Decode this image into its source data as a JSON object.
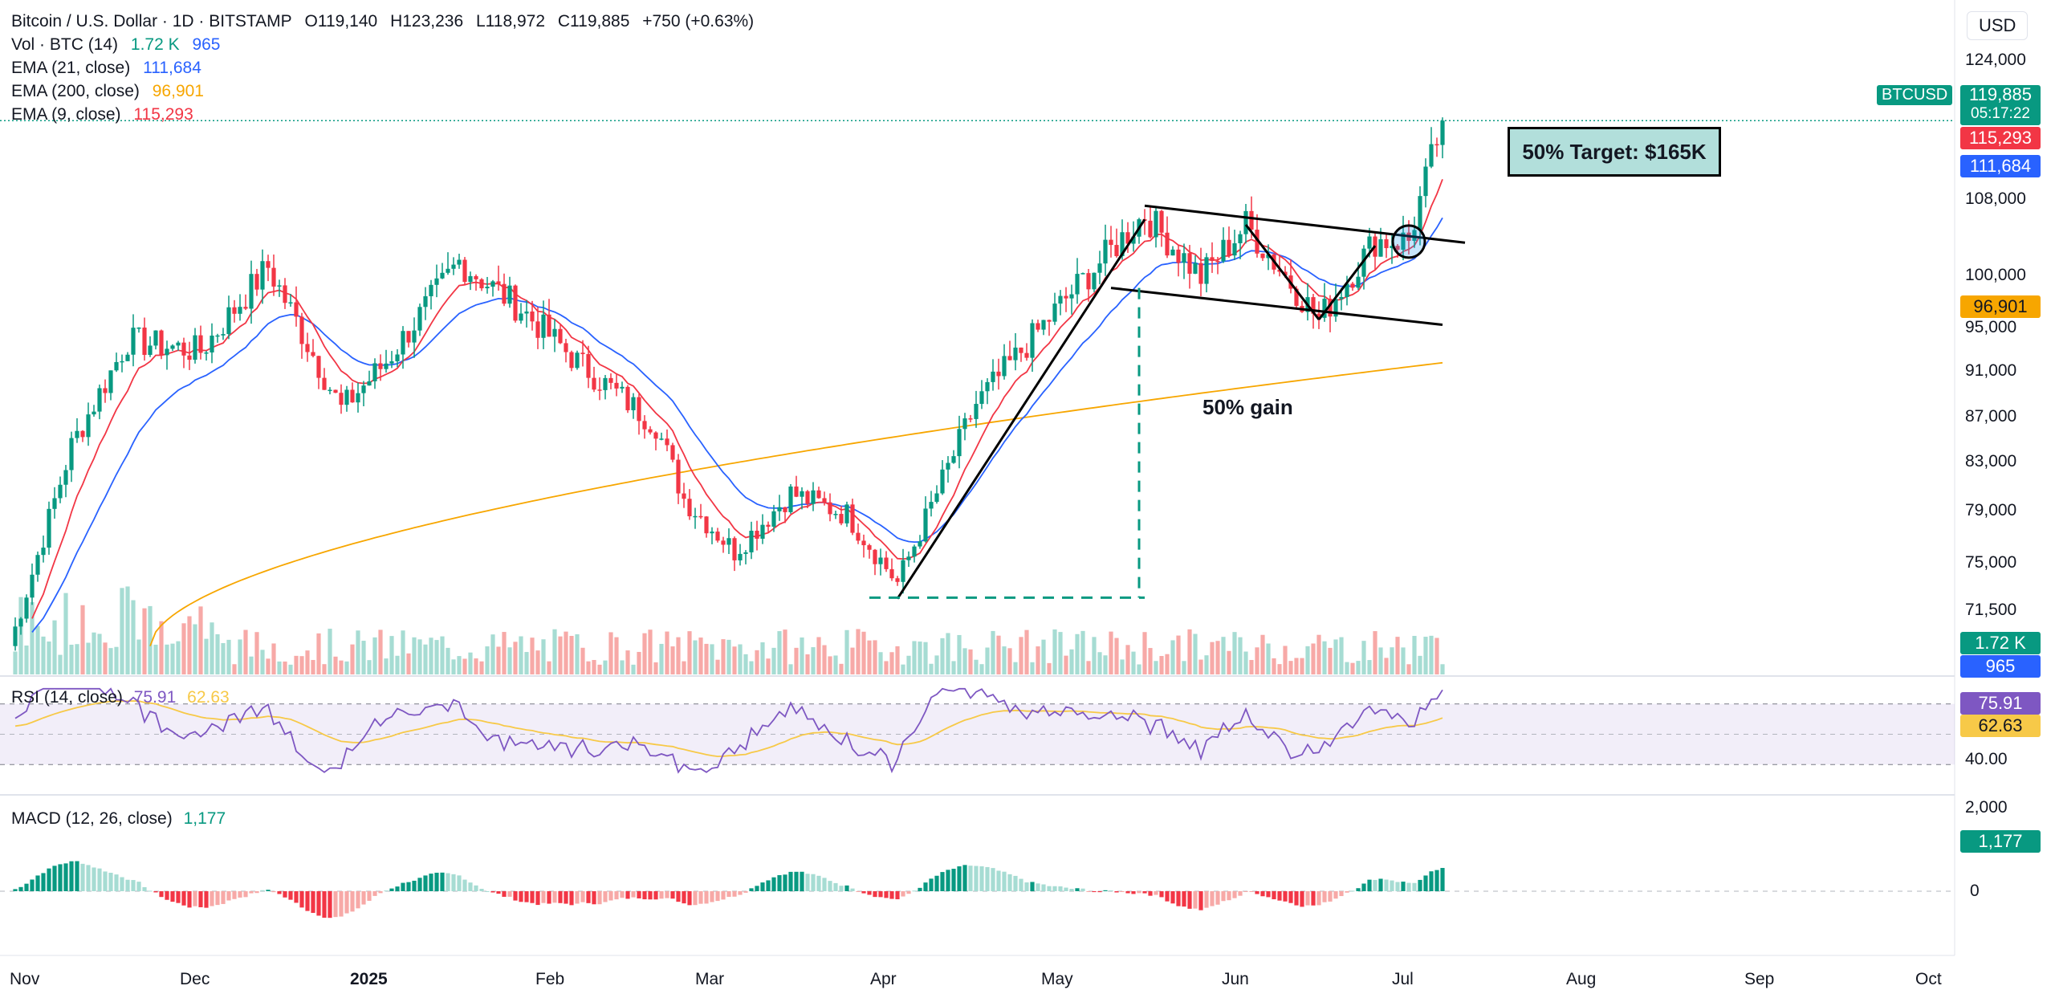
{
  "header": {
    "symbol_title": "Bitcoin / U.S. Dollar · 1D · BITSTAMP",
    "ohlc": {
      "open": "O119,140",
      "high": "H123,236",
      "low": "L118,972",
      "close": "C119,885",
      "change": "+750 (+0.63%)"
    }
  },
  "currency": "USD",
  "indicators": {
    "volume": {
      "label": "Vol · BTC (14)",
      "value1": "1.72 K",
      "value2": "965"
    },
    "ema21": {
      "label": "EMA (21, close)",
      "value": "111,684",
      "color": "#2962ff"
    },
    "ema200": {
      "label": "EMA (200, close)",
      "value": "96,901",
      "color": "#f7a600"
    },
    "ema9": {
      "label": "EMA (9, close)",
      "value": "115,293",
      "color": "#f23645"
    },
    "rsi": {
      "label": "RSI (14, close)",
      "value": "75.91",
      "ma_value": "62.63",
      "line_color": "#7e57c2",
      "ma_color": "#f7c948"
    },
    "macd": {
      "label": "MACD (12, 26, close)",
      "value": "1,177"
    }
  },
  "price_axis": {
    "ticks": [
      "124,000",
      "108,000",
      "100,000",
      "95,000",
      "91,000",
      "87,000",
      "83,000",
      "79,000",
      "75,000",
      "71,500"
    ],
    "badges": {
      "symbol": "BTCUSD",
      "last": "119,885",
      "countdown": "05:17:22",
      "ema9": "115,293",
      "ema21": "111,684",
      "ema200": "96,901",
      "vol1": "1.72 K",
      "vol2": "965"
    }
  },
  "rsi_axis": {
    "ticks": [
      "40.00"
    ],
    "badges": {
      "rsi": "75.91",
      "ma": "62.63"
    }
  },
  "macd_axis": {
    "ticks": [
      "2,000",
      "0"
    ],
    "badges": {
      "macd": "1,177"
    }
  },
  "time_axis": {
    "ticks": [
      {
        "label": "Nov",
        "bold": false
      },
      {
        "label": "Dec",
        "bold": false
      },
      {
        "label": "2025",
        "bold": true
      },
      {
        "label": "Feb",
        "bold": false
      },
      {
        "label": "Mar",
        "bold": false
      },
      {
        "label": "Apr",
        "bold": false
      },
      {
        "label": "May",
        "bold": false
      },
      {
        "label": "Jun",
        "bold": false
      },
      {
        "label": "Jul",
        "bold": false
      },
      {
        "label": "Aug",
        "bold": false
      },
      {
        "label": "Sep",
        "bold": false
      },
      {
        "label": "Oct",
        "bold": false
      }
    ]
  },
  "annotations": {
    "target": "50% Target: $165K",
    "gain": "50% gain"
  },
  "colors": {
    "up": "#089981",
    "down": "#f23645",
    "up_light": "#a6dcd3",
    "down_light": "#f7a9a7"
  },
  "chart_data": {
    "type": "candlestick",
    "symbol": "Bitcoin / U.S. Dollar",
    "timeframe": "1D",
    "x_range": [
      "2024-11",
      "2025-07"
    ],
    "ylim": [
      70000,
      126000
    ],
    "keypoints": [
      {
        "date": "2024-11-01",
        "close": 70000
      },
      {
        "date": "2024-11-12",
        "close": 89000
      },
      {
        "date": "2024-11-22",
        "close": 99000
      },
      {
        "date": "2024-12-05",
        "close": 98000
      },
      {
        "date": "2024-12-17",
        "close": 106000
      },
      {
        "date": "2024-12-30",
        "close": 92500
      },
      {
        "date": "2025-01-07",
        "close": 97000
      },
      {
        "date": "2025-01-20",
        "close": 106500
      },
      {
        "date": "2025-01-31",
        "close": 102000
      },
      {
        "date": "2025-02-10",
        "close": 97000
      },
      {
        "date": "2025-02-24",
        "close": 91000
      },
      {
        "date": "2025-03-01",
        "close": 84000
      },
      {
        "date": "2025-03-10",
        "close": 79000
      },
      {
        "date": "2025-03-20",
        "close": 84500
      },
      {
        "date": "2025-03-30",
        "close": 82500
      },
      {
        "date": "2025-04-08",
        "close": 76000
      },
      {
        "date": "2025-04-22",
        "close": 93000
      },
      {
        "date": "2025-05-08",
        "close": 103000
      },
      {
        "date": "2025-05-22",
        "close": 111000
      },
      {
        "date": "2025-06-01",
        "close": 105000
      },
      {
        "date": "2025-06-09",
        "close": 110000
      },
      {
        "date": "2025-06-22",
        "close": 101000
      },
      {
        "date": "2025-07-02",
        "close": 108500
      },
      {
        "date": "2025-07-08",
        "close": 108500
      },
      {
        "date": "2025-07-14",
        "close": 119885
      }
    ],
    "ema": [
      {
        "name": "EMA 9",
        "last": 115293
      },
      {
        "name": "EMA 21",
        "last": 111684
      },
      {
        "name": "EMA 200",
        "last": 96901
      }
    ],
    "rsi": {
      "last": 75.91,
      "ma_last": 62.63
    },
    "macd": {
      "last": 1177
    },
    "annotations": [
      "50% Target: $165K",
      "50% gain"
    ]
  }
}
